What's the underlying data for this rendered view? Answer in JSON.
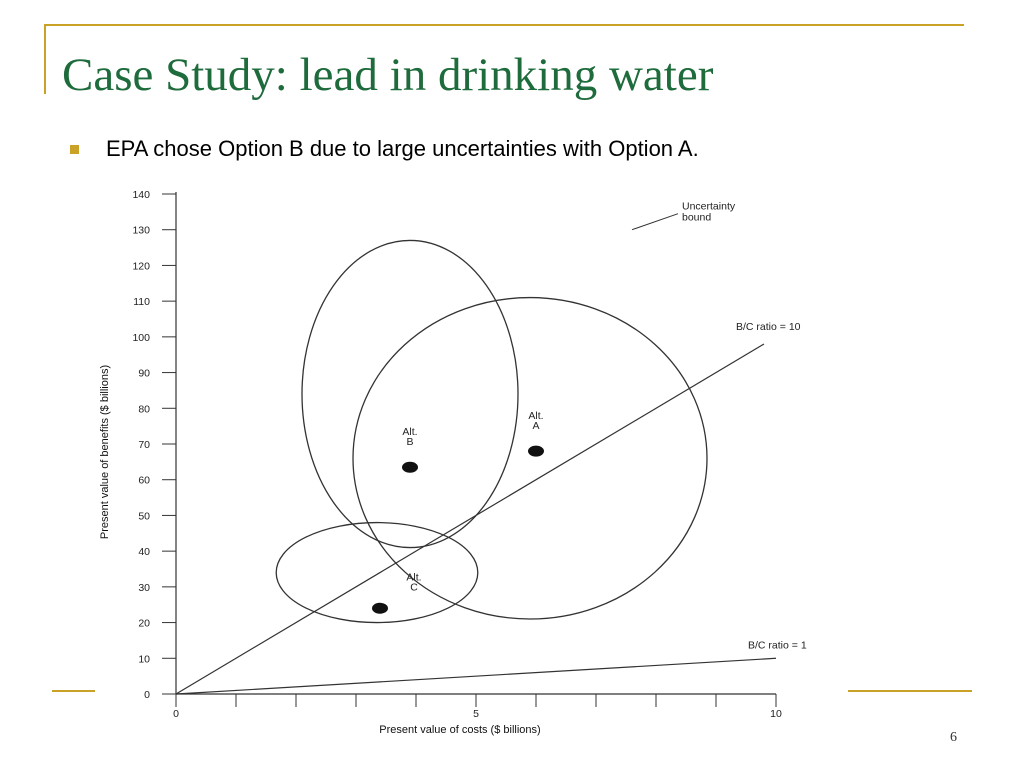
{
  "slide": {
    "title": "Case Study: lead in drinking water",
    "bullet": "EPA chose Option B due to large uncertainties with Option A.",
    "page_number": "6",
    "accent_color": "#c9a227",
    "title_color": "#1e6b3c"
  },
  "chart_data": {
    "type": "scatter",
    "xlabel": "Present value of costs ($ billions)",
    "ylabel": "Present value of benefits ($ billions)",
    "xlim": [
      0,
      10
    ],
    "ylim": [
      0,
      140
    ],
    "x_ticks_labeled": [
      0,
      5,
      10
    ],
    "x_minor_ticks": [
      1,
      2,
      3,
      4,
      6,
      7,
      8,
      9
    ],
    "y_ticks": [
      0,
      10,
      20,
      30,
      40,
      50,
      60,
      70,
      80,
      90,
      100,
      110,
      120,
      130,
      140
    ],
    "grid": false,
    "points": [
      {
        "name": "Alt. A",
        "label_lines": [
          "Alt.",
          "A"
        ],
        "x": 6.0,
        "y": 68
      },
      {
        "name": "Alt. B",
        "label_lines": [
          "Alt.",
          "B"
        ],
        "x": 3.9,
        "y": 63.5
      },
      {
        "name": "Alt. C",
        "label_lines": [
          "Alt.",
          "C"
        ],
        "x": 3.4,
        "y": 24
      }
    ],
    "uncertainty_bounds": [
      {
        "name": "A",
        "center_x": 5.9,
        "center_y": 66,
        "radius_x": 2.95,
        "radius_y": 45
      },
      {
        "name": "B",
        "center_x": 3.9,
        "center_y": 84,
        "radius_x": 1.8,
        "radius_y": 43
      },
      {
        "name": "C",
        "center_x": 3.35,
        "center_y": 34,
        "radius_x": 1.68,
        "radius_y": 14
      }
    ],
    "ratio_lines": [
      {
        "label": "B/C ratio = 10",
        "ratio": 10,
        "x_end": 9.8
      },
      {
        "label": "B/C ratio = 1",
        "ratio": 1,
        "x_end": 10
      }
    ],
    "annotations": [
      {
        "text_lines": [
          "Uncertainty",
          "bound"
        ],
        "pointer_to": [
          7.6,
          130
        ]
      }
    ]
  }
}
